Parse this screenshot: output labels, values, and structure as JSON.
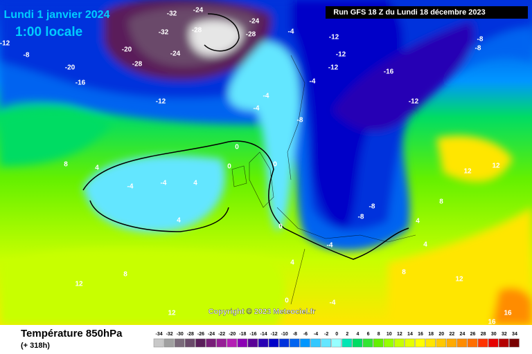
{
  "header": {
    "date": "Lundi 1 janvier 2024",
    "time": "1:00 locale",
    "run": "Run GFS 18 Z du Lundi 18 décembre 2023"
  },
  "copyright": "Copyright © 2023 Meteociel.fr",
  "footer": {
    "title": "Température 850hPa",
    "lead": "(+ 318h)"
  },
  "legend": {
    "values": [
      -34,
      -32,
      -30,
      -28,
      -26,
      -24,
      -22,
      -20,
      -18,
      -16,
      -14,
      -12,
      -10,
      -8,
      -6,
      -4,
      -2,
      0,
      2,
      4,
      6,
      8,
      10,
      12,
      14,
      16,
      18,
      20,
      22,
      24,
      26,
      28,
      30,
      32,
      34
    ],
    "colors": [
      "#c8c8c8",
      "#a0a0a0",
      "#7a6a7a",
      "#6a4a6a",
      "#5a1e5a",
      "#781e78",
      "#961e96",
      "#b41eb4",
      "#8c00b4",
      "#5a0096",
      "#2800b4",
      "#0000c8",
      "#0032dc",
      "#0064f0",
      "#0096ff",
      "#32c8ff",
      "#64e6ff",
      "#96ffff",
      "#00e6b4",
      "#00dc64",
      "#32e632",
      "#64f000",
      "#96ff00",
      "#c8ff00",
      "#e6ff00",
      "#ffff00",
      "#ffe600",
      "#ffc800",
      "#ffaa00",
      "#ff8c00",
      "#ff6e00",
      "#ff3200",
      "#e60000",
      "#b40000",
      "#780000"
    ]
  },
  "map": {
    "labels": [
      "-32",
      "-24",
      "-28",
      "-24",
      "-28",
      "-32",
      "-20",
      "-24",
      "-28",
      "-20",
      "-16",
      "-12",
      "-8",
      "-12",
      "-4",
      "-4",
      "-4",
      "-12",
      "-12",
      "-12",
      "-16",
      "-12",
      "-8",
      "-8",
      "-4",
      "-8",
      "0",
      "0",
      "0",
      "-4",
      "-4",
      "4",
      "4",
      "8",
      "4",
      "8",
      "12",
      "12",
      "0",
      "-4",
      "-8",
      "-8",
      "4",
      "4",
      "8",
      "12",
      "12",
      "16",
      "16",
      "12",
      "8",
      "4",
      "0",
      "-4"
    ]
  }
}
